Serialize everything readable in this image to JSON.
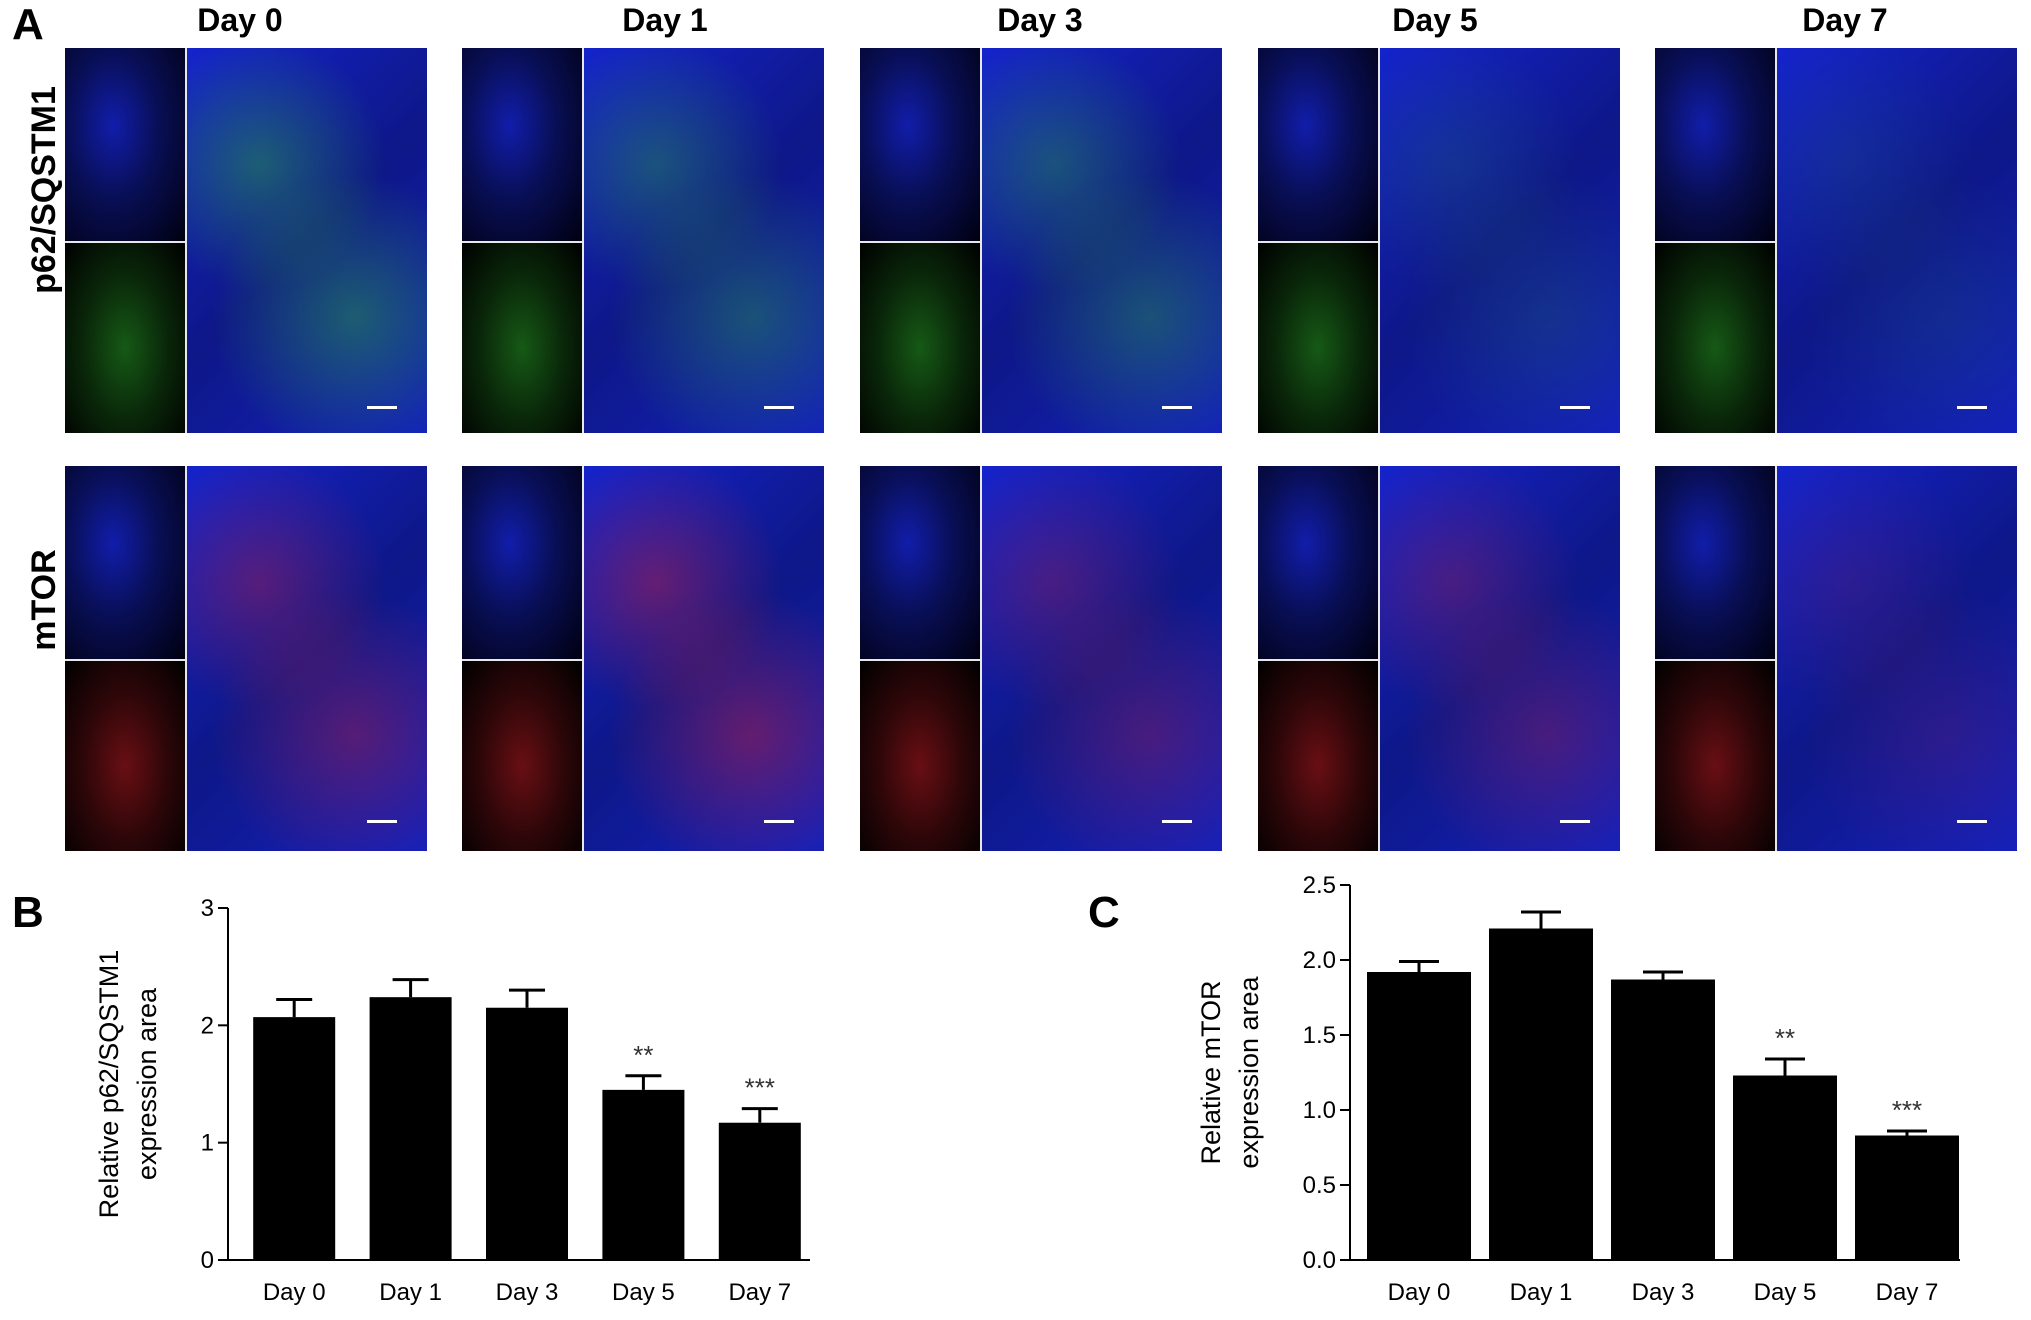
{
  "panel_letters": {
    "a": "A",
    "b": "B",
    "c": "C"
  },
  "days": [
    "Day 0",
    "Day 1",
    "Day 3",
    "Day 5",
    "Day 7"
  ],
  "rows": [
    {
      "label": "p62/SQSTM1",
      "channel": "green",
      "color": "#2fbf2f"
    },
    {
      "label": "mTOR",
      "channel": "red",
      "color": "#e0202a"
    }
  ],
  "nuclear_color": "#1a2cff",
  "chart_data": [
    {
      "type": "bar",
      "panel": "B",
      "categories": [
        "Day 0",
        "Day 1",
        "Day 3",
        "Day 5",
        "Day 7"
      ],
      "values": [
        2.07,
        2.24,
        2.15,
        1.45,
        1.17
      ],
      "errors": [
        0.15,
        0.15,
        0.15,
        0.12,
        0.12
      ],
      "annotations": [
        "",
        "",
        "",
        "**",
        "***"
      ],
      "ylabel_lines": [
        "Relative p62/SQSTM1",
        "expression area"
      ],
      "yticks": [
        "0",
        "1",
        "2",
        "3"
      ],
      "ylim": [
        0,
        3
      ],
      "bar_color": "#000000",
      "grid": false
    },
    {
      "type": "bar",
      "panel": "C",
      "categories": [
        "Day 0",
        "Day 1",
        "Day 3",
        "Day 5",
        "Day 7"
      ],
      "values": [
        1.92,
        2.21,
        1.87,
        1.23,
        0.83
      ],
      "errors": [
        0.07,
        0.11,
        0.05,
        0.11,
        0.03
      ],
      "annotations": [
        "",
        "",
        "",
        "**",
        "***"
      ],
      "ylabel_lines": [
        "Relative mTOR",
        "expression area"
      ],
      "yticks": [
        "0.0",
        "0.5",
        "1.0",
        "1.5",
        "2.0",
        "2.5"
      ],
      "ylim": [
        0,
        2.5
      ],
      "bar_color": "#000000",
      "grid": false
    }
  ]
}
